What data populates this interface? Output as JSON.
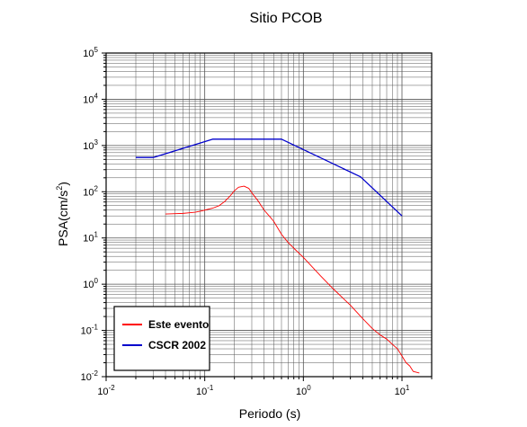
{
  "chart_data": {
    "type": "line",
    "title": "Sitio PCOB",
    "xlabel": "Periodo (s)",
    "ylabel_base": "PSA(cm/s",
    "ylabel_sup": "2",
    "ylabel_tail": ")",
    "x_scale": "log",
    "y_scale": "log",
    "xlim": [
      0.01,
      20
    ],
    "ylim": [
      0.01,
      100000
    ],
    "grid": true,
    "legend_position": "bottom-left",
    "x_ticks": [
      {
        "value": 0.01,
        "base": "10",
        "exp": "-2"
      },
      {
        "value": 0.1,
        "base": "10",
        "exp": "-1"
      },
      {
        "value": 1,
        "base": "10",
        "exp": "0"
      },
      {
        "value": 10,
        "base": "10",
        "exp": "1"
      }
    ],
    "y_ticks": [
      {
        "value": 0.01,
        "base": "10",
        "exp": "-2"
      },
      {
        "value": 0.1,
        "base": "10",
        "exp": "-1"
      },
      {
        "value": 1,
        "base": "10",
        "exp": "0"
      },
      {
        "value": 10,
        "base": "10",
        "exp": "1"
      },
      {
        "value": 100,
        "base": "10",
        "exp": "2"
      },
      {
        "value": 1000,
        "base": "10",
        "exp": "3"
      },
      {
        "value": 10000,
        "base": "10",
        "exp": "4"
      },
      {
        "value": 100000,
        "base": "10",
        "exp": "5"
      }
    ],
    "series": [
      {
        "name": "Este evento",
        "color": "#ff0000",
        "points": [
          [
            0.04,
            33
          ],
          [
            0.05,
            33.5
          ],
          [
            0.06,
            34
          ],
          [
            0.07,
            35
          ],
          [
            0.08,
            36
          ],
          [
            0.09,
            38
          ],
          [
            0.1,
            40
          ],
          [
            0.12,
            44
          ],
          [
            0.14,
            50
          ],
          [
            0.16,
            62
          ],
          [
            0.18,
            80
          ],
          [
            0.2,
            105
          ],
          [
            0.22,
            125
          ],
          [
            0.25,
            132
          ],
          [
            0.28,
            118
          ],
          [
            0.3,
            95
          ],
          [
            0.35,
            62
          ],
          [
            0.4,
            40
          ],
          [
            0.45,
            30
          ],
          [
            0.5,
            23
          ],
          [
            0.6,
            12
          ],
          [
            0.7,
            8
          ],
          [
            0.8,
            6
          ],
          [
            1.0,
            3.8
          ],
          [
            1.5,
            1.5
          ],
          [
            2.0,
            0.8
          ],
          [
            3.0,
            0.35
          ],
          [
            4.0,
            0.18
          ],
          [
            5.0,
            0.11
          ],
          [
            6.0,
            0.08
          ],
          [
            7.0,
            0.065
          ],
          [
            8.0,
            0.05
          ],
          [
            9.0,
            0.04
          ],
          [
            10.0,
            0.028
          ],
          [
            11.0,
            0.02
          ],
          [
            12.0,
            0.017
          ],
          [
            13.0,
            0.013
          ],
          [
            15.0,
            0.012
          ]
        ]
      },
      {
        "name": "CSCR 2002",
        "color": "#0000cc",
        "points": [
          [
            0.02,
            550
          ],
          [
            0.03,
            550
          ],
          [
            0.12,
            1370
          ],
          [
            0.6,
            1370
          ],
          [
            3.8,
            210
          ],
          [
            10.0,
            30
          ]
        ]
      }
    ]
  }
}
